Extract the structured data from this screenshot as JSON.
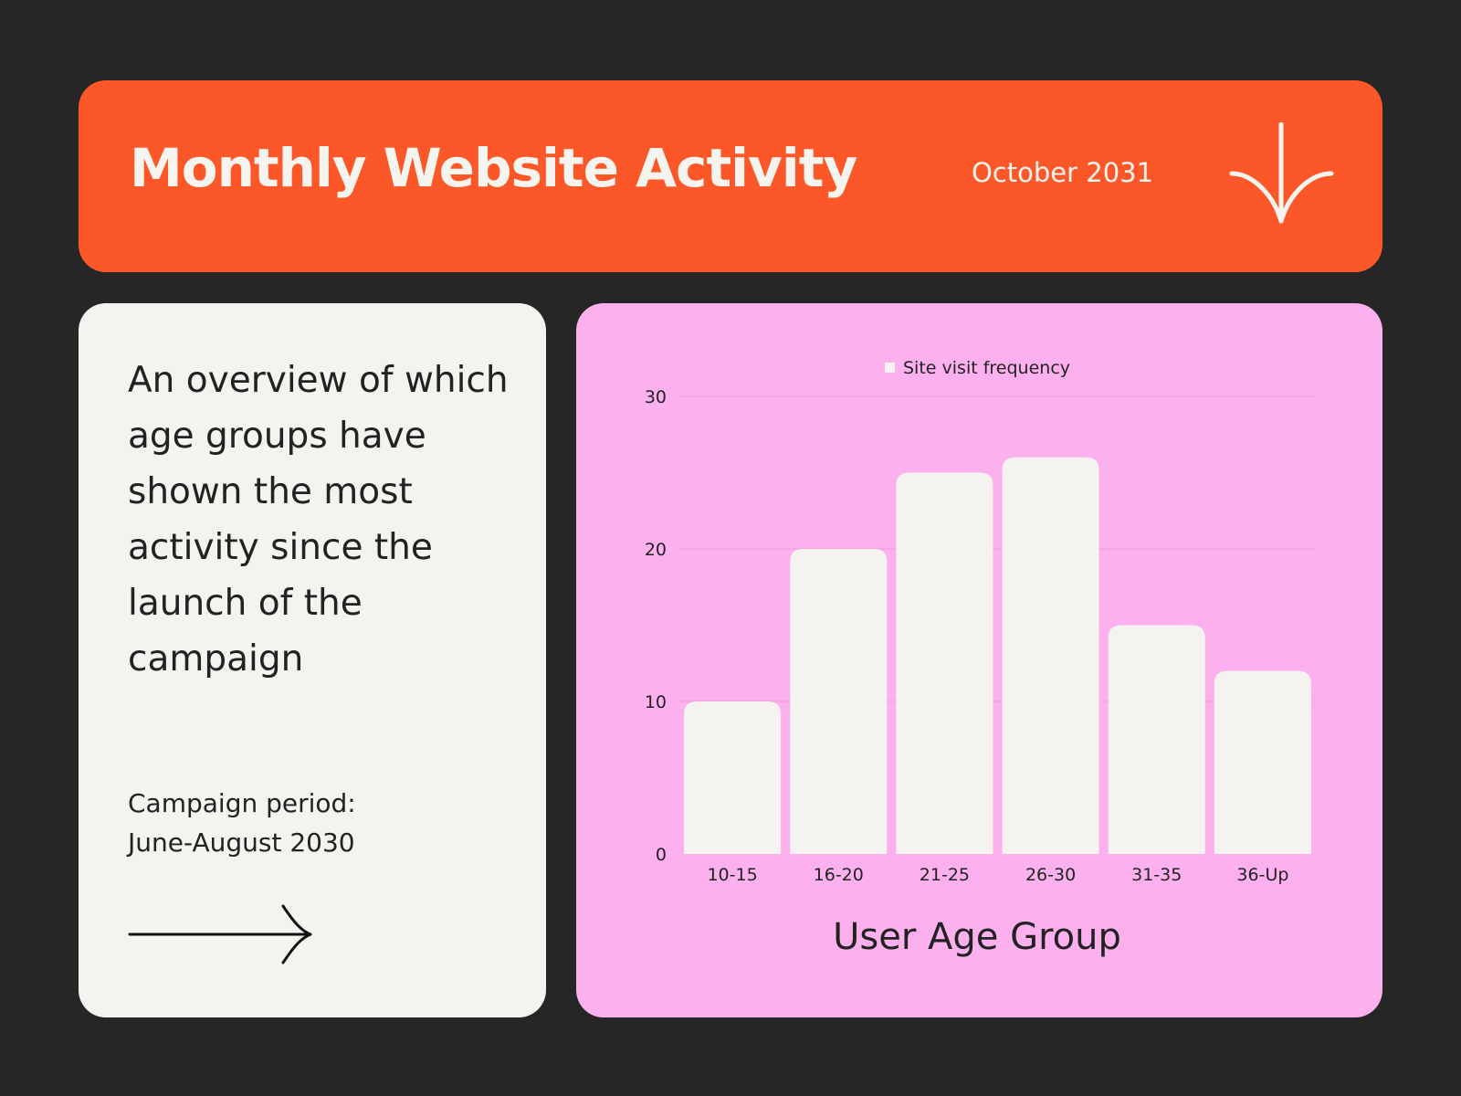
{
  "header": {
    "title": "Monthly Website Activity",
    "date": "October 2031"
  },
  "overview": {
    "text": "An overview of which age groups have shown the most activity since the launch of the campaign",
    "period_label": "Campaign period:",
    "period_value": "June-August 2030"
  },
  "icons": {
    "header_arrow": "arrow-down-icon",
    "card_arrow": "arrow-right-icon"
  },
  "colors": {
    "background": "#262626",
    "header": "#fb5728",
    "card": "#f4f3ef",
    "chart_panel": "#fcb1ee",
    "bars": "#f4f3ef",
    "text_light": "#f6f4ee",
    "text_dark": "#222222"
  },
  "chart_data": {
    "type": "bar",
    "categories": [
      "10-15",
      "16-20",
      "21-25",
      "26-30",
      "31-35",
      "36-Up"
    ],
    "series": [
      {
        "name": "Site visit frequency",
        "values": [
          10,
          20,
          25,
          26,
          15,
          12
        ]
      }
    ],
    "xlabel": "User Age Group",
    "ylabel": "",
    "ylim": [
      0,
      30
    ],
    "yticks": [
      0,
      10,
      20,
      30
    ],
    "grid": true,
    "legend": "top-center"
  }
}
